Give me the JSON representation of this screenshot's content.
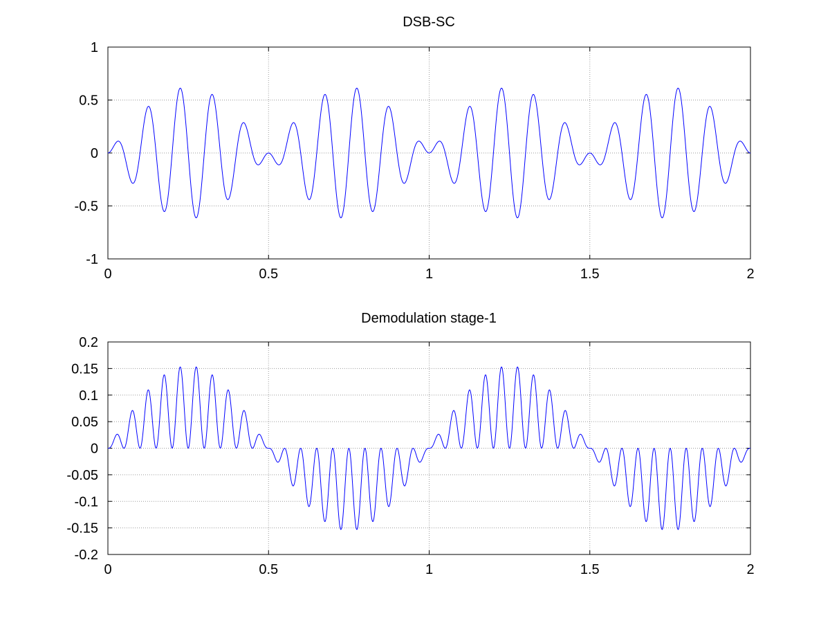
{
  "chart_data": [
    {
      "type": "line",
      "title": "DSB-SC",
      "xlabel": "",
      "ylabel": "",
      "xlim": [
        0,
        2
      ],
      "ylim": [
        -1,
        1
      ],
      "grid": true,
      "x_ticks": [
        0,
        0.5,
        1,
        1.5,
        2
      ],
      "x_tick_labels": [
        "0",
        "0.5",
        "1",
        "1.5",
        "2"
      ],
      "y_ticks": [
        -1,
        -0.5,
        0,
        0.5,
        1
      ],
      "y_tick_labels": [
        "-1",
        "-0.5",
        "0",
        "0.5",
        "1"
      ],
      "series_color": "#0000ff",
      "series": [
        {
          "function": "0.62 * sin(2*pi*1*t) * sin(2*pi*10*t)",
          "x_start": 0,
          "x_end": 2,
          "samples": 2000,
          "message_amplitude": 0.62,
          "message_frequency": 1,
          "carrier_frequency": 10
        }
      ]
    },
    {
      "type": "line",
      "title": "Demodulation stage-1",
      "xlabel": "",
      "ylabel": "",
      "xlim": [
        0,
        2
      ],
      "ylim": [
        -0.2,
        0.2
      ],
      "grid": true,
      "x_ticks": [
        0,
        0.5,
        1,
        1.5,
        2
      ],
      "x_tick_labels": [
        "0",
        "0.5",
        "1",
        "1.5",
        "2"
      ],
      "y_ticks": [
        -0.2,
        -0.15,
        -0.1,
        -0.05,
        0,
        0.05,
        0.1,
        0.15,
        0.2
      ],
      "y_tick_labels": [
        "-0.2",
        "-0.15",
        "-0.1",
        "-0.05",
        "0",
        "0.05",
        "0.1",
        "0.15",
        "0.2"
      ],
      "series_color": "#0000ff",
      "series": [
        {
          "function": "0.155 * sin(2*pi*1*t) * sin(2*pi*10*t)^2",
          "x_start": 0,
          "x_end": 2,
          "samples": 2000,
          "message_amplitude": 0.155,
          "message_frequency": 1,
          "carrier_frequency": 10
        }
      ]
    }
  ]
}
